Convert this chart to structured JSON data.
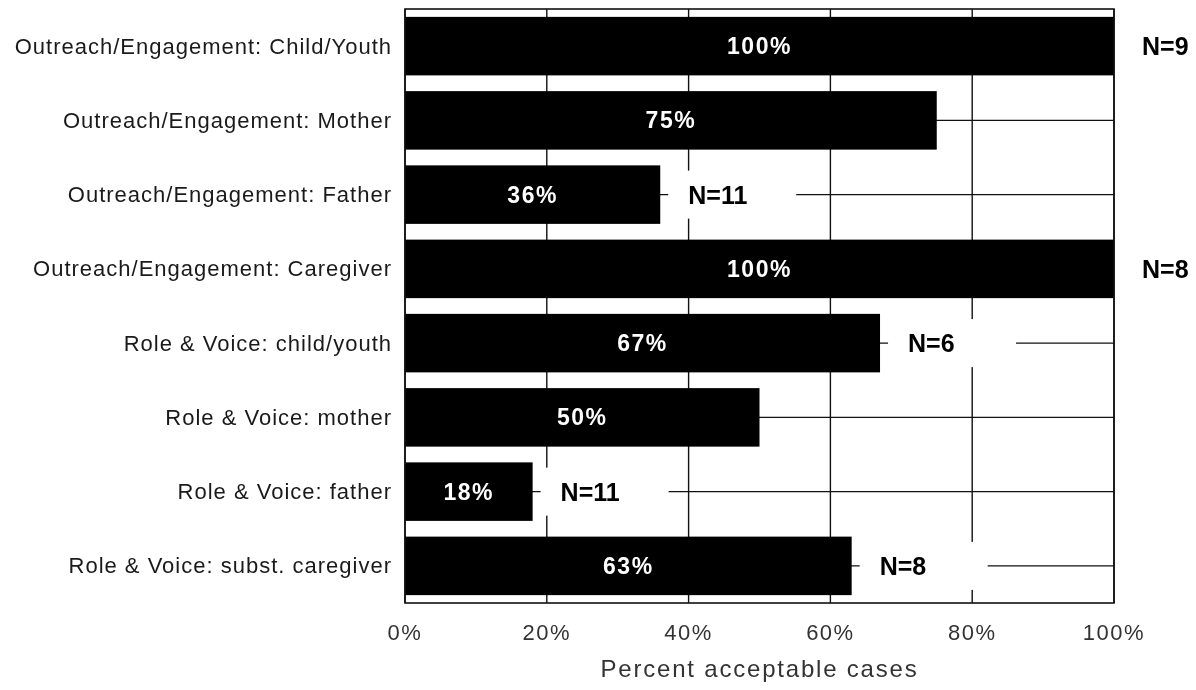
{
  "chart_data": {
    "type": "bar",
    "orientation": "horizontal",
    "categories": [
      "Outreach/Engagement: Child/Youth",
      "Outreach/Engagement: Mother",
      "Outreach/Engagement: Father",
      "Outreach/Engagement: Caregiver",
      "Role & Voice: child/youth",
      "Role & Voice: mother",
      "Role & Voice: father",
      "Role & Voice: subst. caregiver"
    ],
    "values": [
      100,
      75,
      36,
      100,
      67,
      50,
      18,
      63
    ],
    "color": "#000000",
    "value_labels": [
      "100%",
      "75%",
      "36%",
      "100%",
      "67%",
      "50%",
      "18%",
      "63%"
    ],
    "xlim": [
      0,
      100
    ],
    "xticks": [
      {
        "value": 0,
        "label": "0%"
      },
      {
        "value": 20,
        "label": "20%"
      },
      {
        "value": 40,
        "label": "40%"
      },
      {
        "value": 60,
        "label": "60%"
      },
      {
        "value": 80,
        "label": "80%"
      },
      {
        "value": 100,
        "label": "100%"
      }
    ],
    "xlabel": "Percent acceptable cases",
    "grid": true,
    "annotations": [
      {
        "text": "N=9",
        "x": 100,
        "y": "Outreach/Engagement: Child/Youth"
      },
      {
        "text": "N=11",
        "x": 36,
        "y": "Outreach/Engagement: Father"
      },
      {
        "text": "N=8",
        "x": 100,
        "y": "Outreach/Engagement: Caregiver"
      },
      {
        "text": "N=6",
        "x": 67,
        "y": "Role & Voice: child/youth"
      },
      {
        "text": "N=11",
        "x": 18,
        "y": "Role & Voice: father"
      },
      {
        "text": "N=8",
        "x": 63,
        "y": "Role & Voice: subst. caregiver"
      }
    ]
  }
}
